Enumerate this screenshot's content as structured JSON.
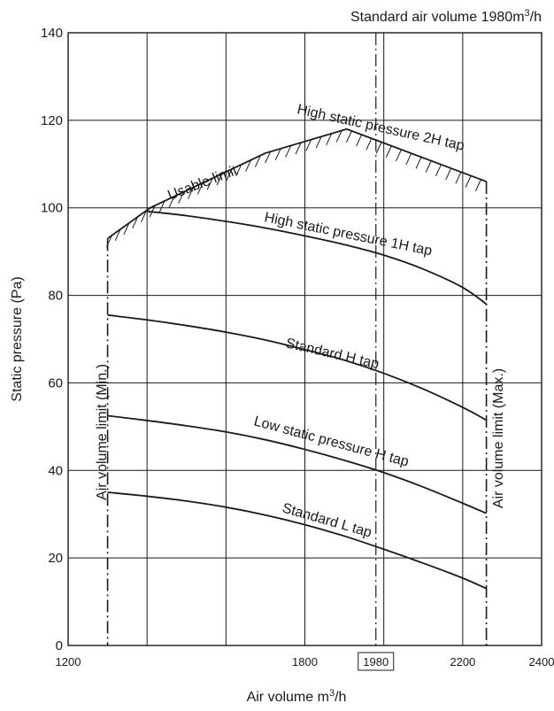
{
  "chart_data": {
    "type": "line",
    "title": "Standard air volume 1980m³/h",
    "title_main": "Standard air volume 1980m",
    "title_unit_sup": "3",
    "title_unit_tail": "/h",
    "xlabel": "Air volume m³/h",
    "xlabel_main": "Air volume m",
    "xlabel_sup": "3",
    "xlabel_tail": "/h",
    "ylabel": "Static pressure (Pa)",
    "xlim": [
      1200,
      2400
    ],
    "ylim": [
      0,
      140
    ],
    "x_ticks": [
      1200,
      1800,
      2200,
      2400
    ],
    "x_tick_labels": [
      "1200",
      "1800",
      "2200",
      "2400"
    ],
    "y_ticks": [
      0,
      20,
      40,
      60,
      80,
      100,
      120,
      140
    ],
    "y_tick_labels": [
      "0",
      "20",
      "40",
      "60",
      "80",
      "100",
      "120",
      "140"
    ],
    "grid": true,
    "vertical_gridlines": [
      1400,
      1600,
      1800,
      2000,
      2200
    ],
    "standard_marker": {
      "x": 1980,
      "label": "1980"
    },
    "limits": {
      "min": {
        "x": 1300,
        "label": "Air volume limit (Min.)"
      },
      "max": {
        "x": 2260,
        "label": "Air volume limit (Max.)"
      }
    },
    "series": [
      {
        "name": "High static pressure 2H tap",
        "x": [
          1600,
          1700,
          1800,
          1900,
          2000,
          2100,
          2200,
          2260
        ],
        "y": [
          116.7,
          115.3,
          113.9,
          112.4,
          110.8,
          109.2,
          107.3,
          106.0
        ]
      },
      {
        "name": "High static pressure 1H tap",
        "x": [
          1400,
          1500,
          1600,
          1700,
          1800,
          1900,
          2000,
          2100,
          2200,
          2260
        ],
        "y": [
          99.2,
          98.2,
          96.9,
          95.4,
          93.6,
          91.6,
          89.2,
          86.0,
          81.8,
          78.0
        ]
      },
      {
        "name": "Standard H tap",
        "x": [
          1300,
          1400,
          1500,
          1600,
          1700,
          1800,
          1900,
          2000,
          2100,
          2200,
          2260
        ],
        "y": [
          75.5,
          74.4,
          73.1,
          71.6,
          69.8,
          67.6,
          65.2,
          62.2,
          58.6,
          54.4,
          51.5
        ]
      },
      {
        "name": "Low static pressure H tap",
        "x": [
          1300,
          1400,
          1500,
          1600,
          1700,
          1800,
          1900,
          2000,
          2100,
          2200,
          2260
        ],
        "y": [
          52.5,
          51.4,
          50.2,
          48.8,
          47.0,
          44.8,
          42.3,
          39.5,
          36.2,
          32.5,
          30.2
        ]
      },
      {
        "name": "Standard L tap",
        "x": [
          1300,
          1400,
          1500,
          1600,
          1700,
          1800,
          1900,
          2000,
          2100,
          2200,
          2260
        ],
        "y": [
          35.0,
          34.1,
          33.0,
          31.6,
          29.8,
          27.6,
          25.0,
          22.0,
          18.8,
          15.4,
          13.0
        ]
      }
    ],
    "usable_limit": {
      "label": "Usable limit",
      "x": [
        1300,
        1408,
        1700,
        1906,
        2260
      ],
      "y": [
        93.0,
        100.0,
        112.5,
        118.0,
        106.0
      ]
    },
    "line_color": "#1a1a1a",
    "grid_color": "#1a1a1a"
  }
}
